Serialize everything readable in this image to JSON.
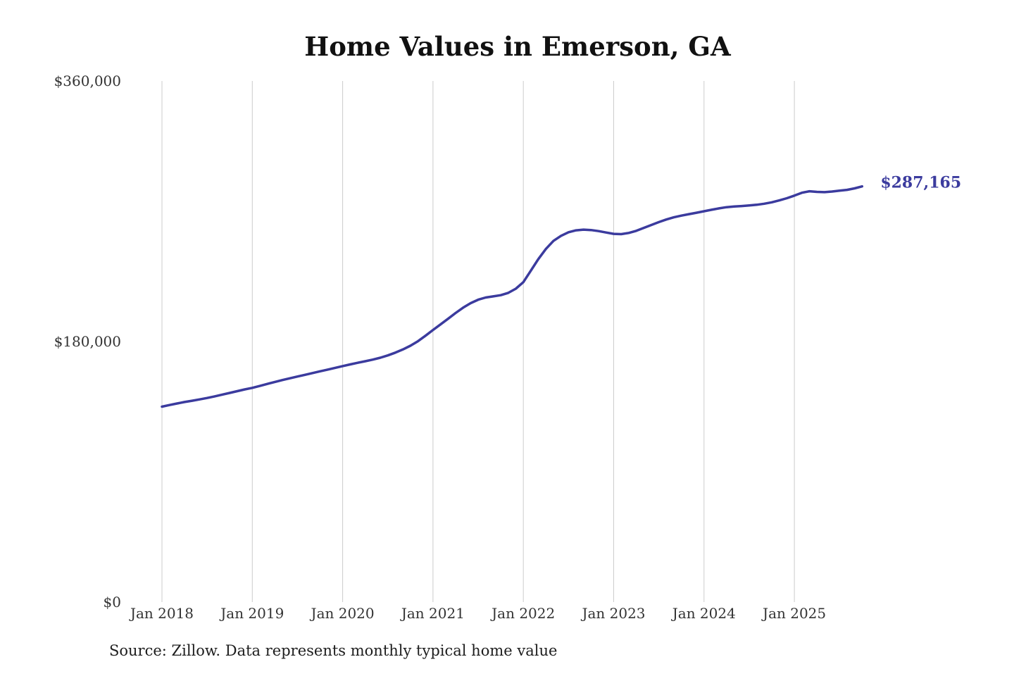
{
  "chart_data": {
    "type": "line",
    "title": "Home Values in Emerson, GA",
    "source": "Source: Zillow. Data represents monthly typical home value",
    "end_label": "$287,165",
    "line_color": "#3b3b9e",
    "grid_color": "#cccccc",
    "tick_color": "#333333",
    "ylim": [
      0,
      360000
    ],
    "xlabel": "",
    "ylabel": "",
    "y_ticks": [
      {
        "value": 0,
        "label": "$0"
      },
      {
        "value": 180000,
        "label": "$180,000"
      },
      {
        "value": 360000,
        "label": "$360,000"
      }
    ],
    "x_ticks": [
      "Jan 2018",
      "Jan 2019",
      "Jan 2020",
      "Jan 2021",
      "Jan 2022",
      "Jan 2023",
      "Jan 2024",
      "Jan 2025"
    ],
    "x": [
      "2018-01",
      "2018-02",
      "2018-03",
      "2018-04",
      "2018-05",
      "2018-06",
      "2018-07",
      "2018-08",
      "2018-09",
      "2018-10",
      "2018-11",
      "2018-12",
      "2019-01",
      "2019-02",
      "2019-03",
      "2019-04",
      "2019-05",
      "2019-06",
      "2019-07",
      "2019-08",
      "2019-09",
      "2019-10",
      "2019-11",
      "2019-12",
      "2020-01",
      "2020-02",
      "2020-03",
      "2020-04",
      "2020-05",
      "2020-06",
      "2020-07",
      "2020-08",
      "2020-09",
      "2020-10",
      "2020-11",
      "2020-12",
      "2021-01",
      "2021-02",
      "2021-03",
      "2021-04",
      "2021-05",
      "2021-06",
      "2021-07",
      "2021-08",
      "2021-09",
      "2021-10",
      "2021-11",
      "2021-12",
      "2022-01",
      "2022-02",
      "2022-03",
      "2022-04",
      "2022-05",
      "2022-06",
      "2022-07",
      "2022-08",
      "2022-09",
      "2022-10",
      "2022-11",
      "2022-12",
      "2023-01",
      "2023-02",
      "2023-03",
      "2023-04",
      "2023-05",
      "2023-06",
      "2023-07",
      "2023-08",
      "2023-09",
      "2023-10",
      "2023-11",
      "2023-12",
      "2024-01",
      "2024-02",
      "2024-03",
      "2024-04",
      "2024-05",
      "2024-06",
      "2024-07",
      "2024-08",
      "2024-09",
      "2024-10",
      "2024-11",
      "2024-12",
      "2025-01",
      "2025-02",
      "2025-03",
      "2025-04",
      "2025-05",
      "2025-06",
      "2025-07",
      "2025-08",
      "2025-09",
      "2025-10"
    ],
    "values": [
      135000,
      136100,
      137200,
      138200,
      139100,
      140000,
      141000,
      142100,
      143300,
      144500,
      145700,
      146900,
      148000,
      149300,
      150700,
      152100,
      153400,
      154600,
      155800,
      157000,
      158200,
      159400,
      160600,
      161800,
      163000,
      164200,
      165300,
      166400,
      167500,
      168800,
      170400,
      172300,
      174500,
      177100,
      180200,
      184000,
      188000,
      191800,
      195700,
      199700,
      203400,
      206500,
      208900,
      210400,
      211200,
      212000,
      213600,
      216500,
      221000,
      229000,
      237000,
      244000,
      249500,
      253000,
      255500,
      256800,
      257300,
      257000,
      256300,
      255300,
      254400,
      254200,
      255000,
      256500,
      258500,
      260500,
      262500,
      264300,
      265800,
      267000,
      268000,
      269000,
      270000,
      271000,
      272000,
      272800,
      273300,
      273600,
      274000,
      274500,
      275200,
      276200,
      277500,
      279000,
      280800,
      282800,
      283800,
      283400,
      283200,
      283600,
      284200,
      284800,
      285800,
      287165
    ]
  }
}
